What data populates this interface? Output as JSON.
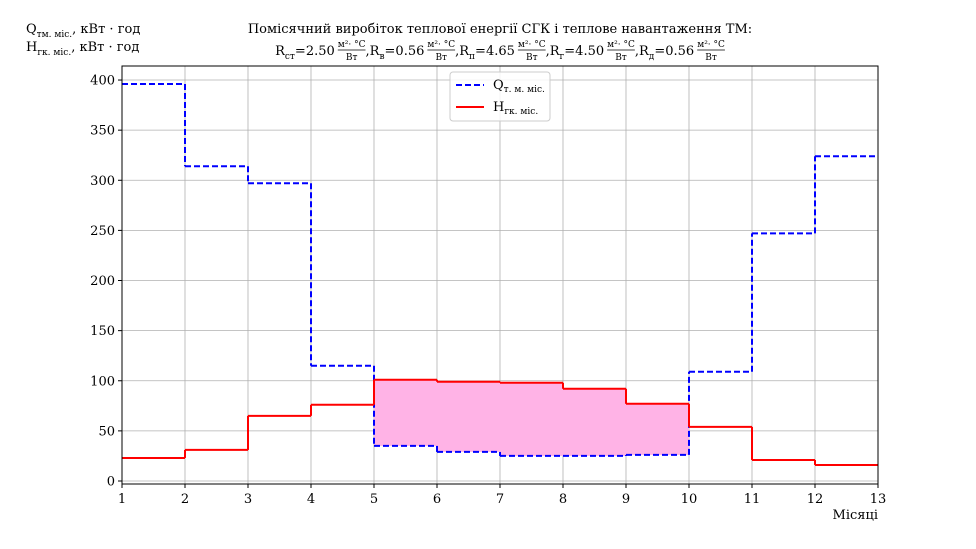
{
  "chart_data": {
    "type": "step",
    "title": "Помісячний виробіток теплової енергії СГК і теплове навантаження ТМ:",
    "subtitle": {
      "eq": " = ",
      "sep": ", ",
      "unit_num": "м²· °C",
      "unit_den": "Вт",
      "items": [
        {
          "symbol": "R",
          "sub": "ст",
          "value": "2.50"
        },
        {
          "symbol": "R",
          "sub": "в",
          "value": "0.56"
        },
        {
          "symbol": "R",
          "sub": "п",
          "value": "4.65"
        },
        {
          "symbol": "R",
          "sub": "г",
          "value": "4.50"
        },
        {
          "symbol": "R",
          "sub": "д",
          "value": "0.56"
        }
      ]
    },
    "y_label": [
      {
        "symbol": "Q",
        "sub": "тм. міс.",
        "rest": ", кВт · год"
      },
      {
        "symbol": "H",
        "sub": "гк. міс.",
        "rest": ", кВт · год"
      }
    ],
    "x_label": "Місяці",
    "x": [
      1,
      2,
      3,
      4,
      5,
      6,
      7,
      8,
      9,
      10,
      11,
      12
    ],
    "series": [
      {
        "name": "Q",
        "name_sub": "т. м. міс.",
        "color": "#0000ff",
        "dashed": true,
        "values": [
          396,
          314,
          297,
          115,
          35,
          29,
          25,
          25,
          26,
          109,
          247,
          324
        ]
      },
      {
        "name": "H",
        "name_sub": "гк. міс.",
        "color": "#ff0000",
        "dashed": false,
        "values": [
          23,
          31,
          65,
          76,
          101,
          99,
          98,
          92,
          77,
          54,
          21,
          16
        ]
      }
    ],
    "fill_color": "#ffb3e6",
    "xlim": [
      1,
      13
    ],
    "xticks": [
      1,
      2,
      3,
      4,
      5,
      6,
      7,
      8,
      9,
      10,
      11,
      12,
      13
    ],
    "ylim": [
      -3,
      414
    ],
    "yticks": [
      0,
      50,
      100,
      150,
      200,
      250,
      300,
      350,
      400
    ],
    "grid": true
  }
}
